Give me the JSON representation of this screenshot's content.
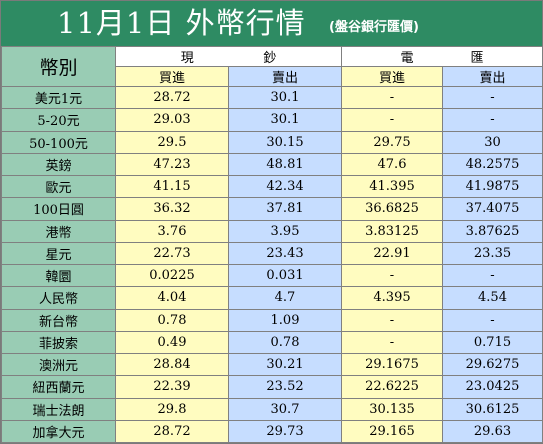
{
  "title": {
    "main": "11月1日 外幣行情",
    "source": "(盤谷銀行匯價)"
  },
  "header": {
    "currency_label": "幣別",
    "cash": {
      "label": [
        "現",
        "鈔"
      ],
      "buy": "買進",
      "sell": "賣出"
    },
    "telegraphic": {
      "label": [
        "電",
        "匯"
      ],
      "buy": "買進",
      "sell": "賣出"
    }
  },
  "rows": [
    {
      "currency": "美元1元",
      "cash_buy": "28.72",
      "cash_sell": "30.1",
      "tt_buy": "-",
      "tt_sell": "-"
    },
    {
      "currency": "5-20元",
      "cash_buy": "29.03",
      "cash_sell": "30.1",
      "tt_buy": "-",
      "tt_sell": "-"
    },
    {
      "currency": "50-100元",
      "cash_buy": "29.5",
      "cash_sell": "30.15",
      "tt_buy": "29.75",
      "tt_sell": "30"
    },
    {
      "currency": "英鎊",
      "cash_buy": "47.23",
      "cash_sell": "48.81",
      "tt_buy": "47.6",
      "tt_sell": "48.2575"
    },
    {
      "currency": "歐元",
      "cash_buy": "41.15",
      "cash_sell": "42.34",
      "tt_buy": "41.395",
      "tt_sell": "41.9875"
    },
    {
      "currency": "100日圓",
      "cash_buy": "36.32",
      "cash_sell": "37.81",
      "tt_buy": "36.6825",
      "tt_sell": "37.4075"
    },
    {
      "currency": "港幣",
      "cash_buy": "3.76",
      "cash_sell": "3.95",
      "tt_buy": "3.83125",
      "tt_sell": "3.87625"
    },
    {
      "currency": "星元",
      "cash_buy": "22.73",
      "cash_sell": "23.43",
      "tt_buy": "22.91",
      "tt_sell": "23.35"
    },
    {
      "currency": "韓圜",
      "cash_buy": "0.0225",
      "cash_sell": "0.031",
      "tt_buy": "-",
      "tt_sell": "-"
    },
    {
      "currency": "人民幣",
      "cash_buy": "4.04",
      "cash_sell": "4.7",
      "tt_buy": "4.395",
      "tt_sell": "4.54"
    },
    {
      "currency": "新台幣",
      "cash_buy": "0.78",
      "cash_sell": "1.09",
      "tt_buy": "-",
      "tt_sell": "-"
    },
    {
      "currency": "菲披索",
      "cash_buy": "0.49",
      "cash_sell": "0.78",
      "tt_buy": "-",
      "tt_sell": "0.715"
    },
    {
      "currency": "澳洲元",
      "cash_buy": "28.84",
      "cash_sell": "30.21",
      "tt_buy": "29.1675",
      "tt_sell": "29.6275"
    },
    {
      "currency": "紐西蘭元",
      "cash_buy": "22.39",
      "cash_sell": "23.52",
      "tt_buy": "22.6225",
      "tt_sell": "23.0425"
    },
    {
      "currency": "瑞士法朗",
      "cash_buy": "29.8",
      "cash_sell": "30.7",
      "tt_buy": "30.135",
      "tt_sell": "30.6125"
    },
    {
      "currency": "加拿大元",
      "cash_buy": "28.72",
      "cash_sell": "29.73",
      "tt_buy": "29.165",
      "tt_sell": "29.63"
    }
  ],
  "colors": {
    "title_bg": "#2e8b63",
    "label_column_bg": "#99ccb4",
    "buy_column_bg": "#fffcc0",
    "sell_column_bg": "#c6ddff"
  }
}
